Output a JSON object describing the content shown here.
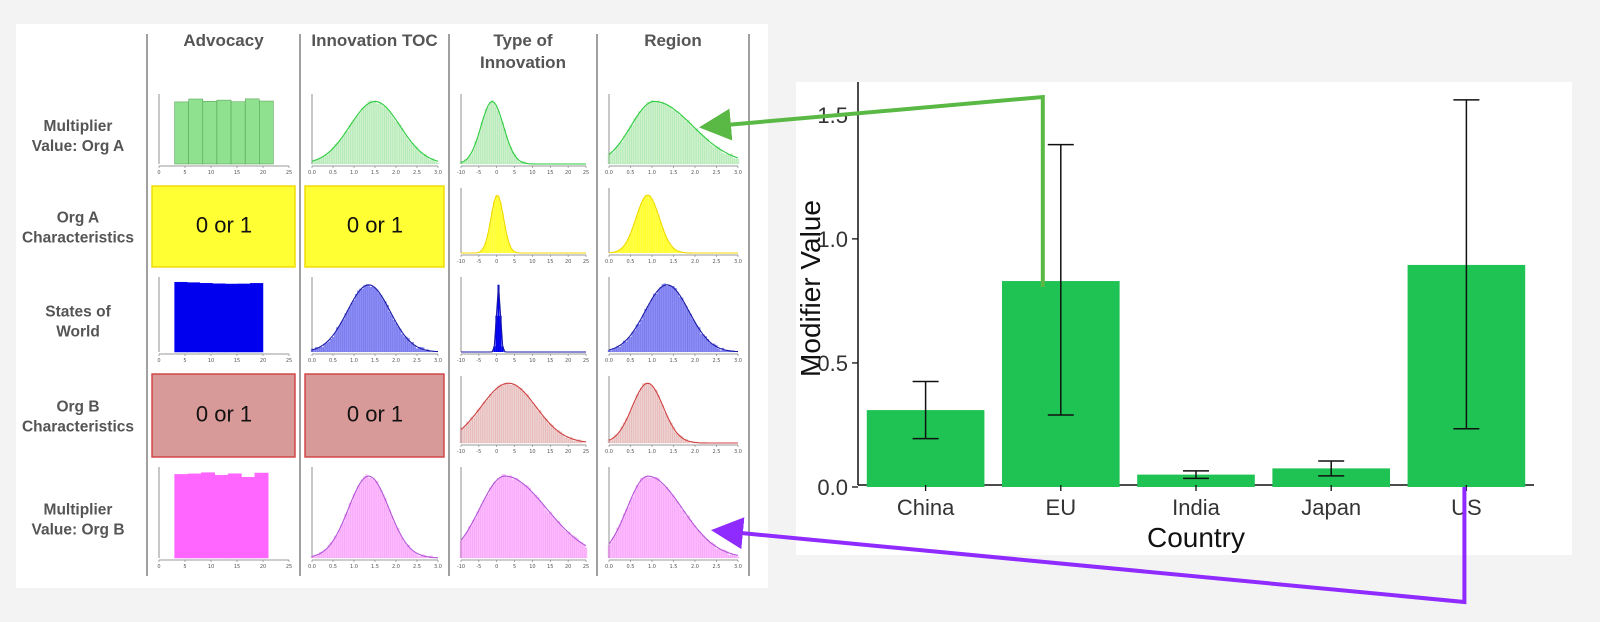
{
  "grid": {
    "columns": [
      {
        "key": "advocacy",
        "label": "Advocacy"
      },
      {
        "key": "innovation_toc",
        "label": "Innovation TOC"
      },
      {
        "key": "type_of_innovation",
        "label": "Type of\nInnovation"
      },
      {
        "key": "region",
        "label": "Region"
      }
    ],
    "rows": [
      {
        "key": "multiplier_a",
        "label": "Multiplier\nValue: Org A",
        "color": "#2ecc40",
        "fill": "#8fe08f",
        "cells": [
          {
            "kind": "uniform",
            "range": [
              3,
              22
            ],
            "ticks": [
              "0",
              "5",
              "10",
              "15",
              "20",
              "25"
            ]
          },
          {
            "kind": "hist",
            "mean": 0.5,
            "spread": 0.2,
            "ticks": [
              "0.0",
              "0.5",
              "1.0",
              "1.5",
              "2.0",
              "2.5",
              "3.0"
            ]
          },
          {
            "kind": "hist",
            "mean": 0.25,
            "spread": 0.09,
            "ticks": [
              "-10",
              "-5",
              "0",
              "5",
              "10",
              "15",
              "20",
              "25"
            ]
          },
          {
            "kind": "hist",
            "mean": 0.35,
            "spread": 0.18,
            "skew": 1,
            "ticks": [
              "0.0",
              "0.5",
              "1.0",
              "1.5",
              "2.0",
              "2.5",
              "3.0"
            ]
          }
        ]
      },
      {
        "key": "org_a",
        "label": "Org A\nCharacteristics",
        "color": "#f0d800",
        "fill": "#ffff33",
        "cells": [
          {
            "kind": "text",
            "text": "0 or 1"
          },
          {
            "kind": "text",
            "text": "0 or 1"
          },
          {
            "kind": "hist",
            "mean": 0.29,
            "spread": 0.05,
            "solid": true,
            "ticks": [
              "-10",
              "-5",
              "0",
              "5",
              "10",
              "15",
              "20",
              "25"
            ]
          },
          {
            "kind": "hist",
            "mean": 0.3,
            "spread": 0.09,
            "solid": true,
            "ticks": [
              "0.0",
              "0.5",
              "1.0",
              "1.5",
              "2.0",
              "2.5",
              "3.0"
            ]
          }
        ]
      },
      {
        "key": "states_of_world",
        "label": "States of\nWorld",
        "color": "#1a1aa6",
        "fill": "#0000ee",
        "cells": [
          {
            "kind": "uniform",
            "range": [
              3,
              20
            ],
            "solid": true,
            "ticks": [
              "0",
              "5",
              "10",
              "15",
              "20",
              "25"
            ]
          },
          {
            "kind": "hist",
            "mean": 0.45,
            "spread": 0.17,
            "ticks": [
              "0.0",
              "0.5",
              "1.0",
              "1.5",
              "2.0",
              "2.5",
              "3.0"
            ]
          },
          {
            "kind": "hist",
            "mean": 0.3,
            "spread": 0.015,
            "solid": true,
            "ticks": [
              "-10",
              "-5",
              "0",
              "5",
              "10",
              "15",
              "20",
              "25"
            ]
          },
          {
            "kind": "hist",
            "mean": 0.45,
            "spread": 0.17,
            "ticks": [
              "0.0",
              "0.5",
              "1.0",
              "1.5",
              "2.0",
              "2.5",
              "3.0"
            ]
          }
        ]
      },
      {
        "key": "org_b",
        "label": "Org B\nCharacteristics",
        "color": "#d04040",
        "fill": "#d89a98",
        "cells": [
          {
            "kind": "text",
            "text": "0 or 1"
          },
          {
            "kind": "text",
            "text": "0 or 1"
          },
          {
            "kind": "hist",
            "mean": 0.38,
            "spread": 0.22,
            "ticks": [
              "-10",
              "-5",
              "0",
              "5",
              "10",
              "15",
              "20",
              "25"
            ]
          },
          {
            "kind": "hist",
            "mean": 0.3,
            "spread": 0.12,
            "ticks": [
              "0.0",
              "0.5",
              "1.0",
              "1.5",
              "2.0",
              "2.5",
              "3.0"
            ]
          }
        ]
      },
      {
        "key": "multiplier_b",
        "label": "Multiplier\nValue: Org B",
        "color": "#b455d8",
        "fill": "#ff66ff",
        "cells": [
          {
            "kind": "uniform",
            "range": [
              3,
              21
            ],
            "solid": true,
            "ticks": [
              "0",
              "5",
              "10",
              "15",
              "20",
              "25"
            ]
          },
          {
            "kind": "hist",
            "mean": 0.45,
            "spread": 0.16,
            "ticks": [
              "0.0",
              "0.5",
              "1.0",
              "1.5",
              "2.0",
              "2.5",
              "3.0"
            ]
          },
          {
            "kind": "hist",
            "mean": 0.35,
            "spread": 0.2,
            "skew": 1,
            "ticks": [
              "-10",
              "-5",
              "0",
              "5",
              "10",
              "15",
              "20",
              "25"
            ]
          },
          {
            "kind": "hist",
            "mean": 0.3,
            "spread": 0.16,
            "skew": 1,
            "ticks": [
              "0.0",
              "0.5",
              "1.0",
              "1.5",
              "2.0",
              "2.5",
              "3.0"
            ]
          }
        ]
      }
    ]
  },
  "chart_data": {
    "type": "bar",
    "categories": [
      "China",
      "EU",
      "India",
      "Japan",
      "US"
    ],
    "values": [
      0.31,
      0.83,
      0.05,
      0.075,
      0.895
    ],
    "error_low": [
      0.195,
      0.29,
      0.035,
      0.045,
      0.235
    ],
    "error_high": [
      0.425,
      1.38,
      0.065,
      0.105,
      1.56
    ],
    "title": "",
    "xlabel": "Country",
    "ylabel": "Modifier Value",
    "ylim": [
      0,
      1.6
    ],
    "yticks": [
      0.0,
      0.5,
      1.0,
      1.5
    ],
    "ytick_labels": [
      "0.0",
      "0.5",
      "1.0",
      "1.5"
    ],
    "bar_color": "#1ec353",
    "grid": false
  },
  "arrows": [
    {
      "from": "EU",
      "to": "multiplier_a/region",
      "color": "#5ab944"
    },
    {
      "from": "US",
      "to": "multiplier_b/region",
      "color": "#8f2bff"
    }
  ]
}
